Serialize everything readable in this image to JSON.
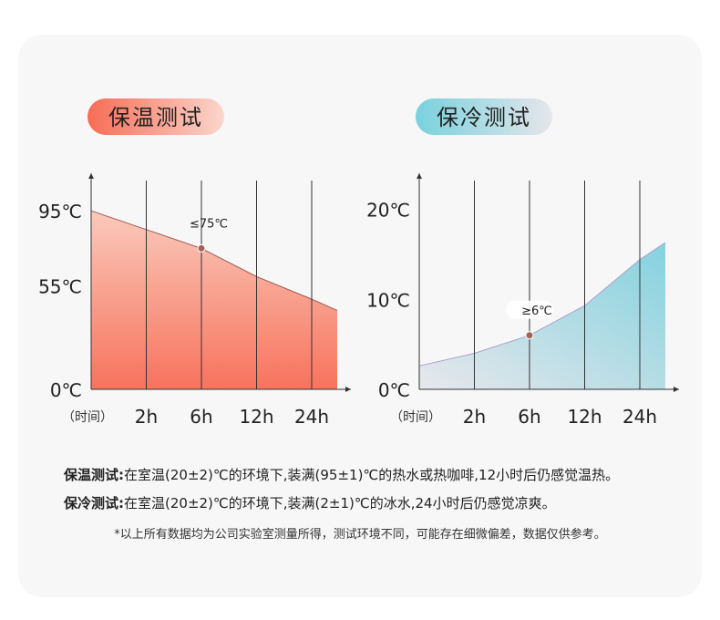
{
  "chart_data": [
    {
      "type": "area",
      "title": "保温测试",
      "x_label": "（时间）",
      "categories": [
        null,
        "2h",
        "6h",
        "12h",
        "24h",
        null
      ],
      "values": [
        95,
        85,
        75,
        60,
        48,
        42
      ],
      "value_labels": [
        null,
        null,
        "≤75℃",
        null,
        null,
        null
      ],
      "ylim": [
        0,
        115
      ],
      "yticks": [
        {
          "value": 0,
          "label": "0℃"
        },
        {
          "value": 55,
          "label": "55℃"
        },
        {
          "value": 95,
          "label": "95℃"
        }
      ],
      "colors": [
        "#fac9bb",
        "#f7735d"
      ],
      "line_color": "#9a5a50"
    },
    {
      "type": "area",
      "title": "保冷测试",
      "x_label": "（时间）",
      "categories": [
        null,
        "2h",
        "6h",
        "12h",
        "24h",
        null
      ],
      "values": [
        2.6,
        4,
        6,
        9.3,
        14.4,
        16.3
      ],
      "value_labels": [
        null,
        null,
        "≥6℃",
        null,
        null,
        null
      ],
      "ylim": [
        0,
        24
      ],
      "yticks": [
        {
          "value": 0,
          "label": "0℃"
        },
        {
          "value": 10,
          "label": "10℃"
        },
        {
          "value": 20,
          "label": "20℃"
        }
      ],
      "colors": [
        "#84d2de",
        "#e8e7ec"
      ],
      "line_color": "#a89fd2"
    }
  ],
  "notes": [
    {
      "label": "保温测试:",
      "text": "在室温(20±2)℃的环境下,装满(95±1)℃的热水或热咖啡,12小时后仍感觉温热。"
    },
    {
      "label": "保冷测试:",
      "text": "在室温(20±2)℃的环境下,装满(2±1)℃的冰水,24小时后仍感觉凉爽。"
    }
  ],
  "footnote": "*以上所有数据均为公司实验室测量所得，测试环境不同，可能存在细微偏差，数据仅供参考。"
}
